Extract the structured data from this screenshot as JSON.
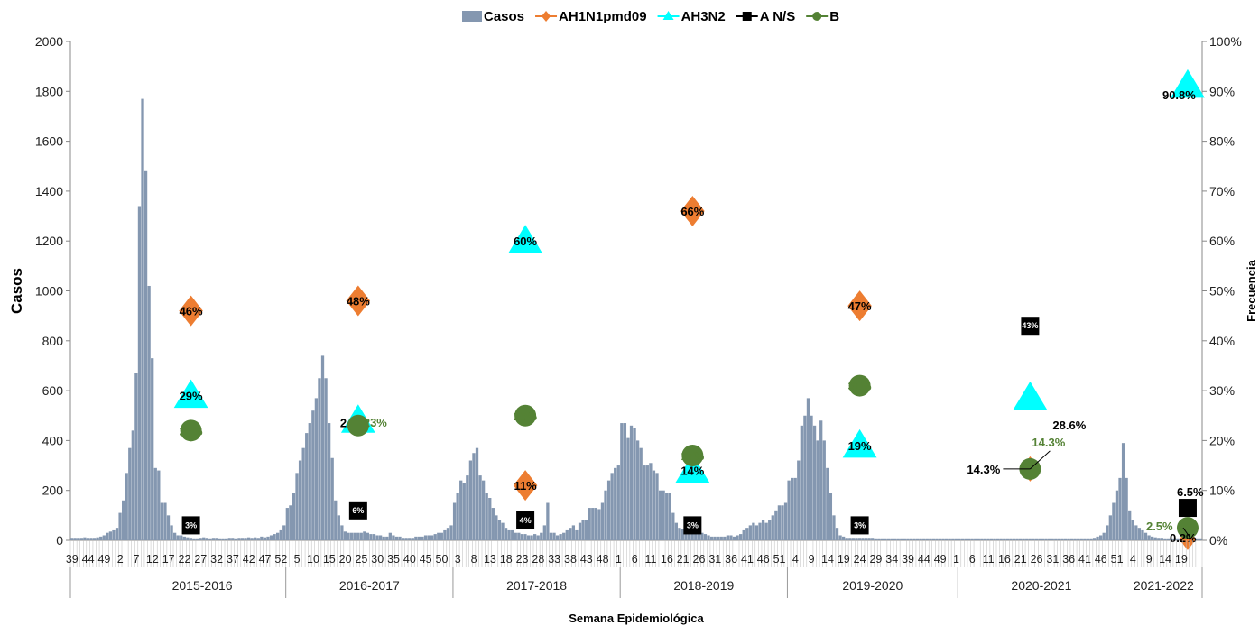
{
  "chart_data": {
    "type": "bar",
    "xlabel": "Semana Epidemiológica",
    "ylabel": "Casos",
    "y2label": "Frecuencia",
    "ylim": [
      0,
      2000
    ],
    "y2lim": [
      0,
      100
    ],
    "y_ticks": [
      "0",
      "200",
      "400",
      "600",
      "800",
      "1000",
      "1200",
      "1400",
      "1600",
      "1800",
      "2000"
    ],
    "y2_ticks": [
      "0%",
      "10%",
      "20%",
      "30%",
      "40%",
      "50%",
      "60%",
      "70%",
      "80%",
      "90%",
      "100%"
    ],
    "legend": [
      {
        "name": "Casos",
        "color": "#8497b0",
        "marker": "bar"
      },
      {
        "name": "AH1N1pmd09",
        "color": "#ed7d31",
        "marker": "diamond"
      },
      {
        "name": "AH3N2",
        "color": "#00ffff",
        "marker": "triangle"
      },
      {
        "name": "A N/S",
        "color": "#000000",
        "marker": "square"
      },
      {
        "name": "B",
        "color": "#548235",
        "marker": "circle"
      }
    ],
    "week_ticks": [
      "39",
      "44",
      "49",
      "2",
      "7",
      "12",
      "17",
      "22",
      "27",
      "32",
      "37",
      "42",
      "47",
      "52",
      "5",
      "10",
      "15",
      "20",
      "25",
      "30",
      "35",
      "40",
      "45",
      "50",
      "3",
      "8",
      "13",
      "18",
      "23",
      "28",
      "33",
      "38",
      "43",
      "48",
      "1",
      "6",
      "11",
      "16",
      "21",
      "26",
      "31",
      "36",
      "41",
      "46",
      "51",
      "4",
      "9",
      "14",
      "19",
      "24",
      "29",
      "34",
      "39",
      "44",
      "49",
      "1",
      "6",
      "11",
      "16",
      "21",
      "26",
      "31",
      "36",
      "41",
      "46",
      "51",
      "4",
      "9",
      "14",
      "19"
    ],
    "seasons": [
      "2015-2016",
      "2016-2017",
      "2017-2018",
      "2018-2019",
      "2019-2020",
      "2020-2021",
      "2021-2022"
    ],
    "season_weeks": [
      52,
      52,
      52,
      52,
      53,
      52,
      24
    ],
    "weekly_cases": {
      "pre": [
        10,
        10,
        10,
        10,
        12,
        10,
        10,
        10,
        12,
        15,
        20,
        30,
        35,
        40,
        50
      ],
      "2015-2016": [
        110,
        160,
        270,
        370,
        440,
        670,
        1340,
        1770,
        1480,
        1020,
        730,
        290,
        280,
        150,
        150,
        100,
        60,
        30,
        20,
        20,
        15,
        12,
        10,
        8,
        8,
        10,
        12,
        10,
        8,
        10,
        10,
        8,
        8,
        8,
        10,
        10,
        8,
        10,
        10,
        10,
        12,
        10,
        12,
        10,
        15,
        12,
        15,
        20,
        25,
        30,
        40,
        60
      ],
      "2016-2017": [
        130,
        140,
        190,
        270,
        320,
        370,
        430,
        470,
        520,
        570,
        650,
        740,
        650,
        470,
        330,
        160,
        100,
        60,
        35,
        30,
        30,
        30,
        30,
        30,
        35,
        30,
        25,
        25,
        20,
        20,
        15,
        15,
        30,
        20,
        15,
        15,
        10,
        10,
        10,
        10,
        15,
        15,
        15,
        20,
        20,
        20,
        25,
        30,
        30,
        40,
        50,
        60
      ],
      "2017-2018": [
        150,
        190,
        240,
        230,
        260,
        320,
        350,
        370,
        260,
        240,
        190,
        170,
        130,
        100,
        80,
        70,
        50,
        40,
        40,
        30,
        30,
        25,
        25,
        20,
        20,
        25,
        20,
        30,
        60,
        150,
        30,
        30,
        20,
        25,
        30,
        40,
        50,
        60,
        40,
        70,
        80,
        80,
        130,
        130,
        130,
        125,
        150,
        200,
        240,
        270,
        290,
        300
      ],
      "2018-2019": [
        470,
        470,
        410,
        460,
        450,
        400,
        370,
        300,
        300,
        310,
        280,
        270,
        200,
        200,
        190,
        190,
        110,
        70,
        50,
        45,
        50,
        40,
        35,
        40,
        30,
        30,
        25,
        20,
        15,
        15,
        15,
        15,
        15,
        20,
        20,
        15,
        20,
        25,
        40,
        50,
        60,
        70,
        60,
        70,
        80,
        70,
        80,
        100,
        120,
        140,
        140,
        150
      ],
      "2019-2020": [
        240,
        250,
        250,
        320,
        460,
        500,
        570,
        500,
        460,
        400,
        480,
        400,
        290,
        190,
        100,
        50,
        20,
        15,
        10,
        10,
        10,
        10,
        10,
        10,
        10,
        10,
        10,
        8,
        8,
        8,
        8,
        8,
        8,
        8,
        8,
        8,
        8,
        8,
        8,
        8,
        8,
        8,
        8,
        8,
        8,
        8,
        8,
        8,
        8,
        8,
        8,
        8,
        8
      ],
      "2020-2021": [
        8,
        8,
        8,
        8,
        8,
        8,
        8,
        8,
        8,
        8,
        8,
        8,
        8,
        8,
        8,
        8,
        8,
        8,
        8,
        8,
        8,
        8,
        8,
        8,
        8,
        8,
        8,
        8,
        8,
        8,
        8,
        8,
        8,
        8,
        8,
        8,
        8,
        8,
        8,
        8,
        8,
        8,
        10,
        15,
        20,
        30,
        60,
        100,
        150,
        200,
        250,
        390
      ],
      "2021-2022": [
        250,
        120,
        80,
        60,
        50,
        40,
        30,
        20,
        15,
        12,
        10,
        10,
        8,
        8,
        8,
        8,
        8,
        8,
        8,
        8,
        8,
        8,
        8,
        8
      ]
    },
    "subtype_percentages": {
      "2015-2016": {
        "AH1N1pmd09": 46,
        "AH3N2": 29,
        "A N/S": 3,
        "B": 22
      },
      "2016-2017": {
        "AH1N1pmd09": 48,
        "AH3N2": 24,
        "A N/S": 6,
        "B": 23
      },
      "2017-2018": {
        "AH1N1pmd09": 11,
        "AH3N2": 60,
        "A N/S": 4,
        "B": 25
      },
      "2018-2019": {
        "AH1N1pmd09": 66,
        "AH3N2": 14,
        "A N/S": 3,
        "B": 17
      },
      "2019-2020": {
        "AH1N1pmd09": 47,
        "AH3N2": 19,
        "A N/S": 3,
        "B": 31
      },
      "2020-2021": {
        "AH1N1pmd09": 14.3,
        "AH3N2": 28.6,
        "A N/S": 43,
        "B": 14.3
      },
      "2021-2022": {
        "AH1N1pmd09": 0.2,
        "AH3N2": 90.8,
        "A N/S": 6.5,
        "B": 2.5
      }
    },
    "percentage_labels": {
      "2015-2016": {
        "AH1N1pmd09": "46%",
        "AH3N2": "29%",
        "A N/S": "3%",
        "B": "22%"
      },
      "2016-2017": {
        "AH1N1pmd09": "48%",
        "AH3N2": "24%",
        "A N/S": "6%",
        "B": "23%"
      },
      "2017-2018": {
        "AH1N1pmd09": "11%",
        "AH3N2": "60%",
        "A N/S": "4%",
        "B": "25%"
      },
      "2018-2019": {
        "AH1N1pmd09": "66%",
        "AH3N2": "14%",
        "A N/S": "3%",
        "B": "17%"
      },
      "2019-2020": {
        "AH1N1pmd09": "47%",
        "AH3N2": "19%",
        "A N/S": "3%",
        "B": "31%"
      },
      "2020-2021": {
        "AH1N1pmd09": "14.3%",
        "AH3N2": "28.6%",
        "A N/S": "43%",
        "B": "14.3%"
      },
      "2021-2022": {
        "AH1N1pmd09": "0.2%",
        "AH3N2": "90.8%",
        "A N/S": "6.5%",
        "B": "2.5%"
      }
    }
  }
}
